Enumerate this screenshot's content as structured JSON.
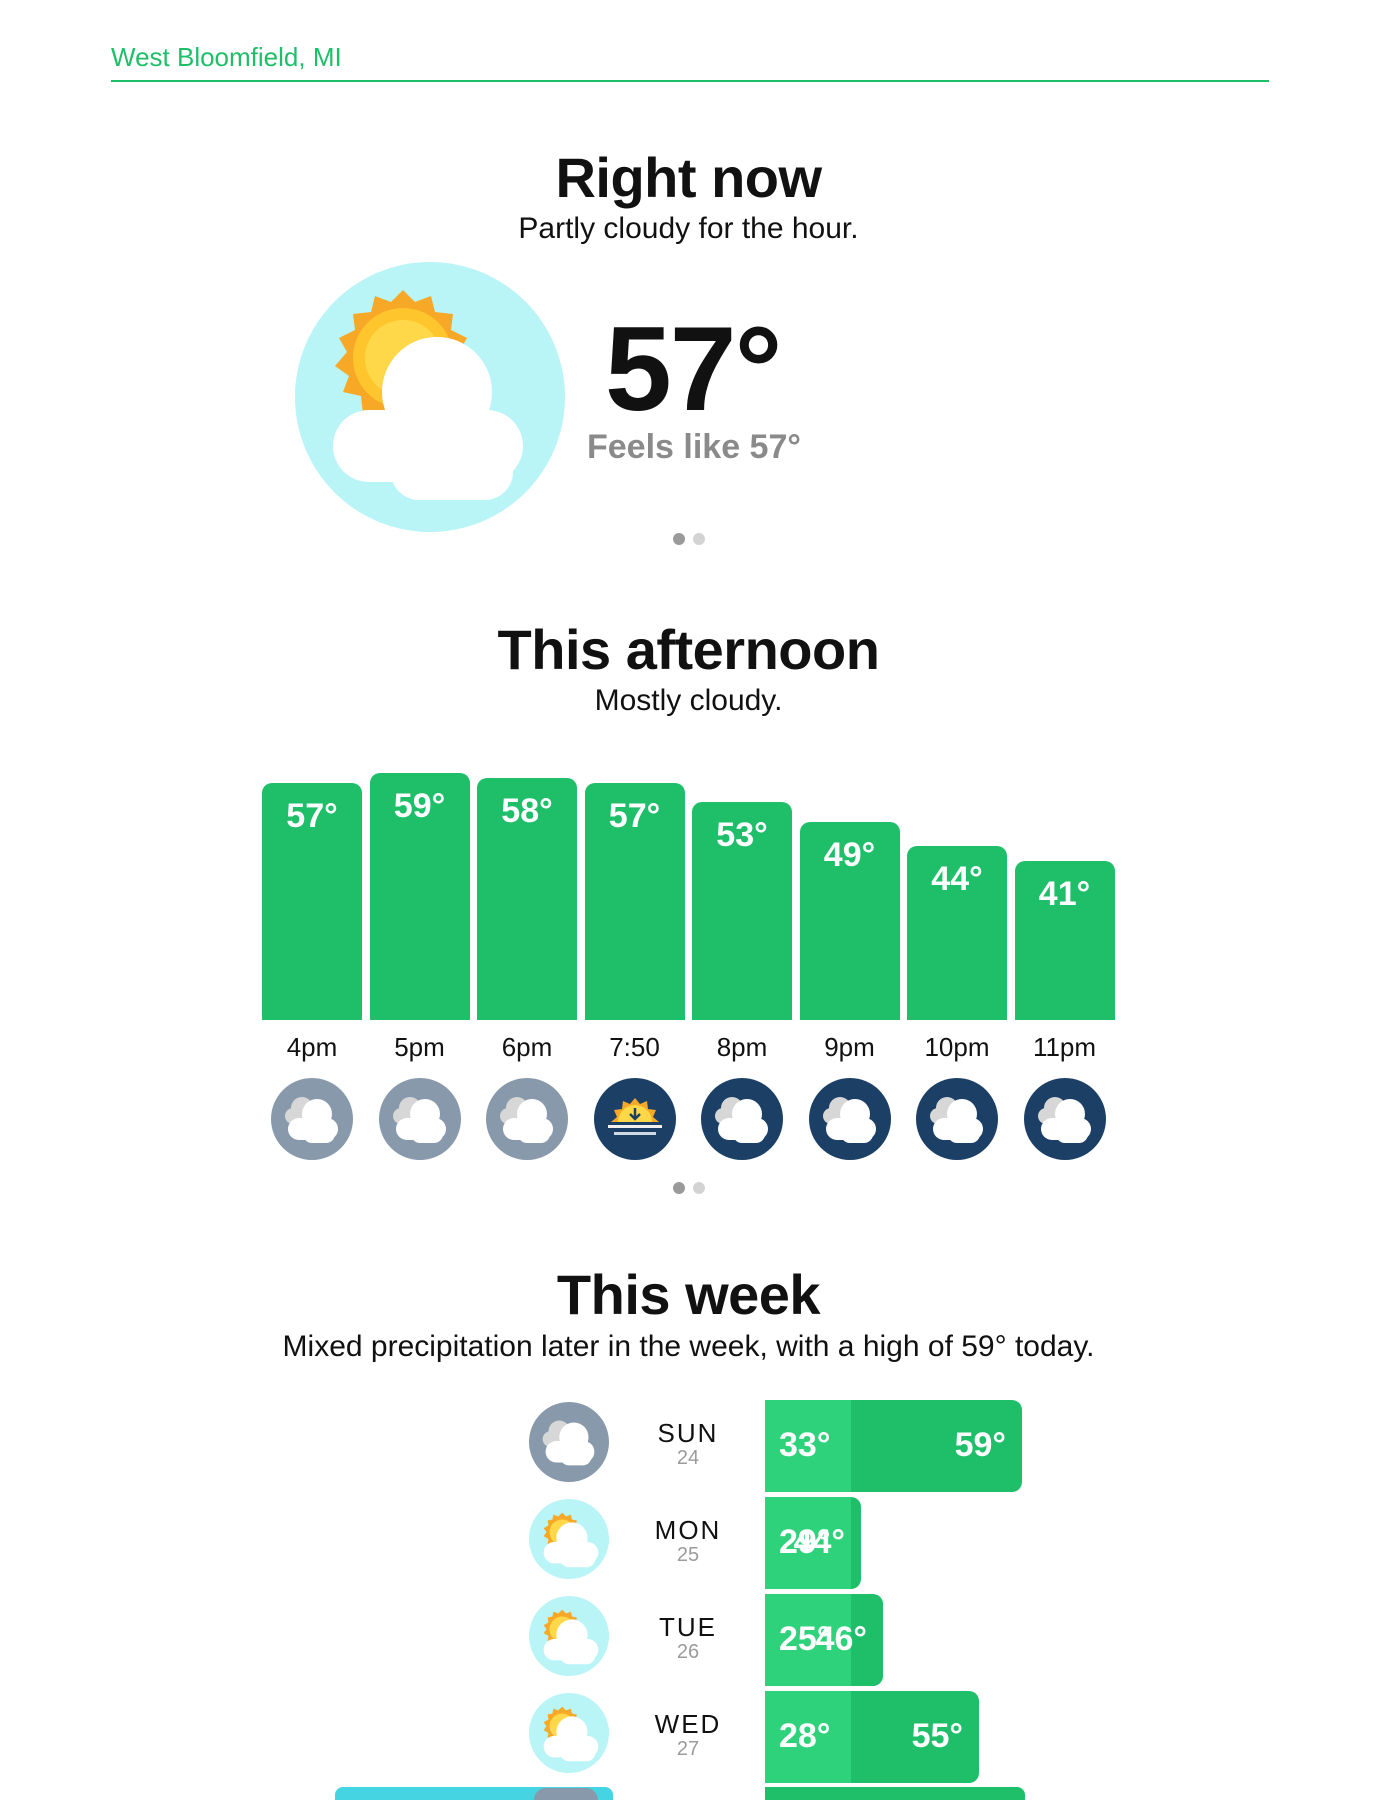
{
  "header": {
    "location": "West Bloomfield, MI"
  },
  "now": {
    "title": "Right now",
    "summary": "Partly cloudy for the hour.",
    "temperature": "57°",
    "feels_like": "Feels like 57°",
    "icon": "partly-cloudy-day-icon"
  },
  "afternoon": {
    "title": "This afternoon",
    "summary": "Mostly cloudy.",
    "hours": [
      {
        "label": "4pm",
        "temp": "57°",
        "value": 57,
        "icon": "cloudy-icon"
      },
      {
        "label": "5pm",
        "temp": "59°",
        "value": 59,
        "icon": "cloudy-icon"
      },
      {
        "label": "6pm",
        "temp": "58°",
        "value": 58,
        "icon": "cloudy-icon"
      },
      {
        "label": "7:50",
        "temp": "57°",
        "value": 57,
        "icon": "sunset-icon"
      },
      {
        "label": "8pm",
        "temp": "53°",
        "value": 53,
        "icon": "cloudy-night-icon"
      },
      {
        "label": "9pm",
        "temp": "49°",
        "value": 49,
        "icon": "cloudy-night-icon"
      },
      {
        "label": "10pm",
        "temp": "44°",
        "value": 44,
        "icon": "cloudy-night-icon"
      },
      {
        "label": "11pm",
        "temp": "41°",
        "value": 41,
        "icon": "cloudy-night-icon"
      }
    ]
  },
  "week": {
    "title": "This week",
    "summary": "Mixed precipitation later in the week, with a high of 59° today.",
    "days": [
      {
        "day": "SUN",
        "date": "24",
        "low": "33°",
        "high": "59°",
        "low_value": 33,
        "high_value": 59,
        "icon": "cloudy-icon"
      },
      {
        "day": "MON",
        "date": "25",
        "low": "29°",
        "high": "44°",
        "low_value": 29,
        "high_value": 44,
        "icon": "partly-cloudy-day-icon"
      },
      {
        "day": "TUE",
        "date": "26",
        "low": "25°",
        "high": "46°",
        "low_value": 25,
        "high_value": 46,
        "icon": "partly-cloudy-day-icon"
      },
      {
        "day": "WED",
        "date": "27",
        "low": "28°",
        "high": "55°",
        "low_value": 28,
        "high_value": 55,
        "icon": "partly-cloudy-day-icon"
      }
    ]
  },
  "colors": {
    "accent": "#1fbf6a",
    "accent_light": "#2ed27a",
    "sky": "#b9f4f7",
    "cloud_day": "#8899ab",
    "night": "#1c3f66",
    "sun": "#f7a826"
  }
}
